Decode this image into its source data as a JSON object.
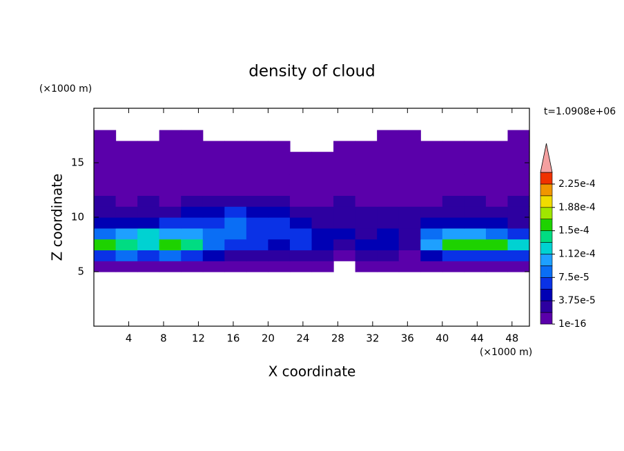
{
  "chart_data": {
    "type": "contour",
    "title": "density of cloud",
    "xlabel": "X coordinate",
    "ylabel": "Z coordinate",
    "xunit": "(×1000 m)",
    "yunit": "(×1000 m)",
    "annotation": "t=1.0908e+06",
    "xlim": [
      0,
      50
    ],
    "ylim": [
      0,
      20
    ],
    "xticks": [
      4,
      8,
      12,
      16,
      20,
      24,
      28,
      32,
      36,
      40,
      44,
      48
    ],
    "yticks": [
      5,
      10,
      15
    ],
    "x_edges": [
      0,
      2.5,
      5,
      7.5,
      10,
      12.5,
      15,
      17.5,
      20,
      22.5,
      25,
      27.5,
      30,
      32.5,
      35,
      37.5,
      40,
      42.5,
      45,
      47.5,
      50
    ],
    "y_edges": [
      5,
      6,
      7,
      8,
      9,
      10,
      11,
      12,
      13,
      14,
      15,
      16,
      17,
      18
    ],
    "z": [
      [
        1e-05,
        1e-05,
        1e-05,
        1e-05,
        1e-05,
        1e-05,
        1e-05,
        1e-05,
        1e-05,
        1e-05,
        1e-05,
        null,
        1e-05,
        1e-05,
        1e-05,
        1e-05,
        1e-05,
        1e-05,
        1e-05,
        1e-05
      ],
      [
        6.5e-05,
        8.4e-05,
        6.5e-05,
        8.4e-05,
        6.5e-05,
        4.7e-05,
        2.8e-05,
        2.8e-05,
        2.8e-05,
        2.8e-05,
        2.8e-05,
        1e-05,
        2.8e-05,
        2.8e-05,
        1e-05,
        4.7e-05,
        6.5e-05,
        6.5e-05,
        6.5e-05,
        6.5e-05
      ],
      [
        0.000159,
        0.00014,
        0.000122,
        0.000159,
        0.00014,
        8.4e-05,
        6.5e-05,
        6.5e-05,
        4.7e-05,
        6.5e-05,
        4.7e-05,
        2.8e-05,
        4.7e-05,
        4.7e-05,
        2.8e-05,
        0.000103,
        0.000159,
        0.000159,
        0.000159,
        0.000122
      ],
      [
        8.4e-05,
        0.000103,
        0.000122,
        0.000103,
        0.000103,
        8.4e-05,
        8.4e-05,
        6.5e-05,
        6.5e-05,
        6.5e-05,
        4.7e-05,
        4.7e-05,
        2.8e-05,
        4.7e-05,
        2.8e-05,
        8.4e-05,
        0.000103,
        0.000103,
        8.4e-05,
        6.5e-05
      ],
      [
        4.7e-05,
        4.7e-05,
        4.7e-05,
        6.5e-05,
        6.5e-05,
        6.5e-05,
        8.4e-05,
        6.5e-05,
        6.5e-05,
        4.7e-05,
        2.8e-05,
        2.8e-05,
        2.8e-05,
        2.8e-05,
        2.8e-05,
        4.7e-05,
        4.7e-05,
        4.7e-05,
        4.7e-05,
        2.8e-05
      ],
      [
        2.8e-05,
        2.8e-05,
        2.8e-05,
        2.8e-05,
        4.7e-05,
        4.7e-05,
        6.5e-05,
        4.7e-05,
        4.7e-05,
        2.8e-05,
        2.8e-05,
        2.8e-05,
        2.8e-05,
        2.8e-05,
        2.8e-05,
        2.8e-05,
        2.8e-05,
        2.8e-05,
        2.8e-05,
        2.8e-05
      ],
      [
        2.8e-05,
        1e-05,
        2.8e-05,
        1e-05,
        2.8e-05,
        2.8e-05,
        2.8e-05,
        2.8e-05,
        2.8e-05,
        1e-05,
        1e-05,
        2.8e-05,
        1e-05,
        1e-05,
        1e-05,
        1e-05,
        2.8e-05,
        2.8e-05,
        1e-05,
        2.8e-05
      ],
      [
        1e-05,
        1e-05,
        1e-05,
        1e-05,
        1e-05,
        1e-05,
        1e-05,
        1e-05,
        1e-05,
        1e-05,
        1e-05,
        1e-05,
        1e-05,
        1e-05,
        1e-05,
        1e-05,
        1e-05,
        1e-05,
        1e-05,
        1e-05
      ],
      [
        1e-05,
        1e-05,
        1e-05,
        1e-05,
        1e-05,
        1e-05,
        1e-05,
        1e-05,
        1e-05,
        1e-05,
        1e-05,
        1e-05,
        1e-05,
        1e-05,
        1e-05,
        1e-05,
        1e-05,
        1e-05,
        1e-05,
        1e-05
      ],
      [
        1e-05,
        1e-05,
        1e-05,
        1e-05,
        1e-05,
        1e-05,
        1e-05,
        1e-05,
        1e-05,
        1e-05,
        1e-05,
        1e-05,
        1e-05,
        1e-05,
        1e-05,
        1e-05,
        1e-05,
        1e-05,
        1e-05,
        1e-05
      ],
      [
        1e-05,
        1e-05,
        1e-05,
        1e-05,
        1e-05,
        1e-05,
        1e-05,
        1e-05,
        1e-05,
        1e-05,
        1e-05,
        1e-05,
        1e-05,
        1e-05,
        1e-05,
        1e-05,
        1e-05,
        1e-05,
        1e-05,
        1e-05
      ],
      [
        1e-05,
        1e-05,
        1e-05,
        1e-05,
        1e-05,
        1e-05,
        1e-05,
        1e-05,
        1e-05,
        null,
        null,
        1e-05,
        1e-05,
        1e-05,
        1e-05,
        1e-05,
        1e-05,
        1e-05,
        1e-05,
        1e-05
      ],
      [
        1e-05,
        null,
        null,
        1e-05,
        1e-05,
        null,
        null,
        null,
        null,
        null,
        null,
        null,
        null,
        1e-05,
        1e-05,
        null,
        null,
        null,
        null,
        1e-05
      ]
    ],
    "levels": [
      1e-16,
      1.875e-05,
      3.75e-05,
      5.625e-05,
      7.5e-05,
      9.375e-05,
      0.0001125,
      0.00013125,
      0.00015,
      0.00016875,
      0.0001875,
      0.00020625,
      0.000225,
      0.00024375
    ],
    "colors": [
      "#5a00aa",
      "#2d00a0",
      "#0000b4",
      "#0a32e6",
      "#0a6ef5",
      "#1ea0ff",
      "#00d2d2",
      "#00dc82",
      "#1ed200",
      "#a0e600",
      "#f0dc00",
      "#f09600",
      "#f03200"
    ],
    "extend_color": "#f4a0a0",
    "colorbar_ticks": [
      {
        "value": 1e-16,
        "label": "1e-16"
      },
      {
        "value": 3.75e-05,
        "label": "3.75e-5"
      },
      {
        "value": 7.5e-05,
        "label": "7.5e-5"
      },
      {
        "value": 0.0001125,
        "label": "1.12e-4"
      },
      {
        "value": 0.00015,
        "label": "1.5e-4"
      },
      {
        "value": 0.0001875,
        "label": "1.88e-4"
      },
      {
        "value": 0.000225,
        "label": "2.25e-4"
      }
    ]
  }
}
